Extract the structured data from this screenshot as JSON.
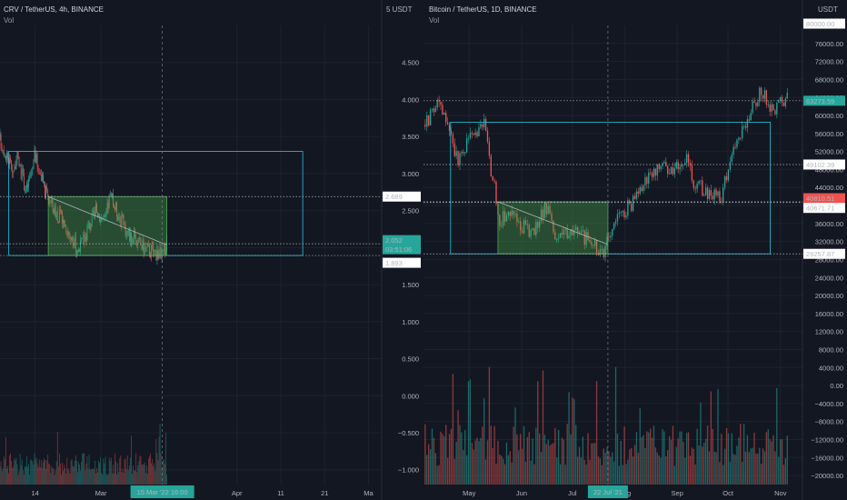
{
  "colors": {
    "background": "#131722",
    "grid": "#1e222d",
    "up": "#26a69a",
    "down": "#ef5350",
    "box": "#26c6da",
    "highlight_fill": "rgba(76,175,80,0.35)",
    "highlight_stroke": "#4caf50",
    "text": "#b2b5be"
  },
  "left_panel": {
    "title": "CRV / TetherUS, 4h, BINANCE",
    "sub": "Vol",
    "currency": "5 USDT",
    "y_ticks": [
      "4.500",
      "4.000",
      "3.500",
      "3.000",
      "2.500",
      "2.000",
      "1.500",
      "1.000",
      "0.500",
      "0.000",
      "−0.500",
      "−1.000"
    ],
    "x_ticks": [
      "14",
      "Mar",
      "Apr",
      "11",
      "21",
      "Ma"
    ],
    "price_labels": [
      {
        "value": "2.689",
        "style": "white"
      },
      {
        "value": "2.052",
        "style": "green"
      },
      {
        "value": "03:51:06",
        "style": "green"
      },
      {
        "value": "1.893",
        "style": "white"
      }
    ],
    "cursor_date": "15 Mar '22",
    "cursor_time": "16:00"
  },
  "right_panel": {
    "title": "Bitcoin / TetherUS, 1D, BINANCE",
    "sub": "Vol",
    "currency": "USDT",
    "y_ticks": [
      "76000.00",
      "72000.00",
      "68000.00",
      "64000.00",
      "60000.00",
      "56000.00",
      "52000.00",
      "48000.00",
      "44000.00",
      "40000.00",
      "36000.00",
      "32000.00",
      "28000.00",
      "24000.00",
      "20000.00",
      "16000.00",
      "12000.00",
      "8000.00",
      "4000.00",
      "0.00",
      "−4000.00",
      "−8000.00",
      "−12000.00",
      "−16000.00",
      "−20000.00"
    ],
    "x_ticks": [
      "May",
      "Jun",
      "Jul",
      "Aug",
      "Sep",
      "Oct",
      "Nov"
    ],
    "price_labels": [
      {
        "value": "80000.00",
        "style": "white"
      },
      {
        "value": "63273.59",
        "style": "green"
      },
      {
        "value": "49102.39",
        "style": "white"
      },
      {
        "value": "40810.51",
        "style": "red"
      },
      {
        "value": "15:51:06",
        "style": "red"
      },
      {
        "value": "40671.71",
        "style": "white"
      },
      {
        "value": "29257.87",
        "style": "white"
      }
    ],
    "cursor_date": "22 Jul '21"
  },
  "chart_data": [
    {
      "type": "candlestick",
      "title": "CRV / TetherUS, 4h, BINANCE",
      "ylim": [
        -1.2,
        5.0
      ],
      "series": [
        {
          "name": "Vol"
        }
      ],
      "close_path": [
        {
          "x": "2022-02-06",
          "y": 3.45
        },
        {
          "x": "2022-02-09",
          "y": 3.05
        },
        {
          "x": "2022-02-10",
          "y": 3.2
        },
        {
          "x": "2022-02-12",
          "y": 2.75
        },
        {
          "x": "2022-02-14",
          "y": 3.25
        },
        {
          "x": "2022-02-16",
          "y": 2.8
        },
        {
          "x": "2022-02-18",
          "y": 2.55
        },
        {
          "x": "2022-02-21",
          "y": 2.3
        },
        {
          "x": "2022-02-22",
          "y": 2.15
        },
        {
          "x": "2022-02-24",
          "y": 1.95
        },
        {
          "x": "2022-02-26",
          "y": 2.25
        },
        {
          "x": "2022-02-28",
          "y": 2.5
        },
        {
          "x": "2022-03-02",
          "y": 2.35
        },
        {
          "x": "2022-03-03",
          "y": 2.7
        },
        {
          "x": "2022-03-05",
          "y": 2.45
        },
        {
          "x": "2022-03-07",
          "y": 2.2
        },
        {
          "x": "2022-03-09",
          "y": 2.1
        },
        {
          "x": "2022-03-11",
          "y": 1.98
        },
        {
          "x": "2022-03-13",
          "y": 1.95
        },
        {
          "x": "2022-03-15",
          "y": 1.9
        },
        {
          "x": "2022-03-16",
          "y": 2.05
        }
      ],
      "box": {
        "top": 3.3,
        "bottom": 1.893
      },
      "highlight": {
        "top": 2.689,
        "bottom": 1.893
      },
      "levels": [
        2.689,
        2.052,
        1.893
      ]
    },
    {
      "type": "candlestick",
      "title": "Bitcoin / TetherUS, 1D, BINANCE",
      "ylim": [
        -22000,
        80000
      ],
      "series": [
        {
          "name": "Vol"
        }
      ],
      "close_path": [
        {
          "x": "2021-04-05",
          "y": 58000
        },
        {
          "x": "2021-04-14",
          "y": 63000
        },
        {
          "x": "2021-04-20",
          "y": 55000
        },
        {
          "x": "2021-04-25",
          "y": 49500
        },
        {
          "x": "2021-05-02",
          "y": 56500
        },
        {
          "x": "2021-05-10",
          "y": 57500
        },
        {
          "x": "2021-05-13",
          "y": 50000
        },
        {
          "x": "2021-05-19",
          "y": 37000
        },
        {
          "x": "2021-05-25",
          "y": 38000
        },
        {
          "x": "2021-06-08",
          "y": 33500
        },
        {
          "x": "2021-06-15",
          "y": 40000
        },
        {
          "x": "2021-06-22",
          "y": 32500
        },
        {
          "x": "2021-07-01",
          "y": 34500
        },
        {
          "x": "2021-07-20",
          "y": 29800
        },
        {
          "x": "2021-07-26",
          "y": 37000
        },
        {
          "x": "2021-08-05",
          "y": 40000
        },
        {
          "x": "2021-08-14",
          "y": 46500
        },
        {
          "x": "2021-08-22",
          "y": 49000
        },
        {
          "x": "2021-08-30",
          "y": 47000
        },
        {
          "x": "2021-09-06",
          "y": 51500
        },
        {
          "x": "2021-09-10",
          "y": 45000
        },
        {
          "x": "2021-09-20",
          "y": 43000
        },
        {
          "x": "2021-09-27",
          "y": 42000
        },
        {
          "x": "2021-10-01",
          "y": 48000
        },
        {
          "x": "2021-10-06",
          "y": 55000
        },
        {
          "x": "2021-10-15",
          "y": 61000
        },
        {
          "x": "2021-10-20",
          "y": 65000
        },
        {
          "x": "2021-10-28",
          "y": 61500
        },
        {
          "x": "2021-11-05",
          "y": 63273.59
        }
      ],
      "box": {
        "top": 58500,
        "bottom": 29257.87
      },
      "highlight": {
        "top": 40810.51,
        "bottom": 29257.87
      },
      "levels": [
        63273.59,
        49102.39,
        40810.51,
        40671.71,
        29257.87
      ]
    }
  ]
}
